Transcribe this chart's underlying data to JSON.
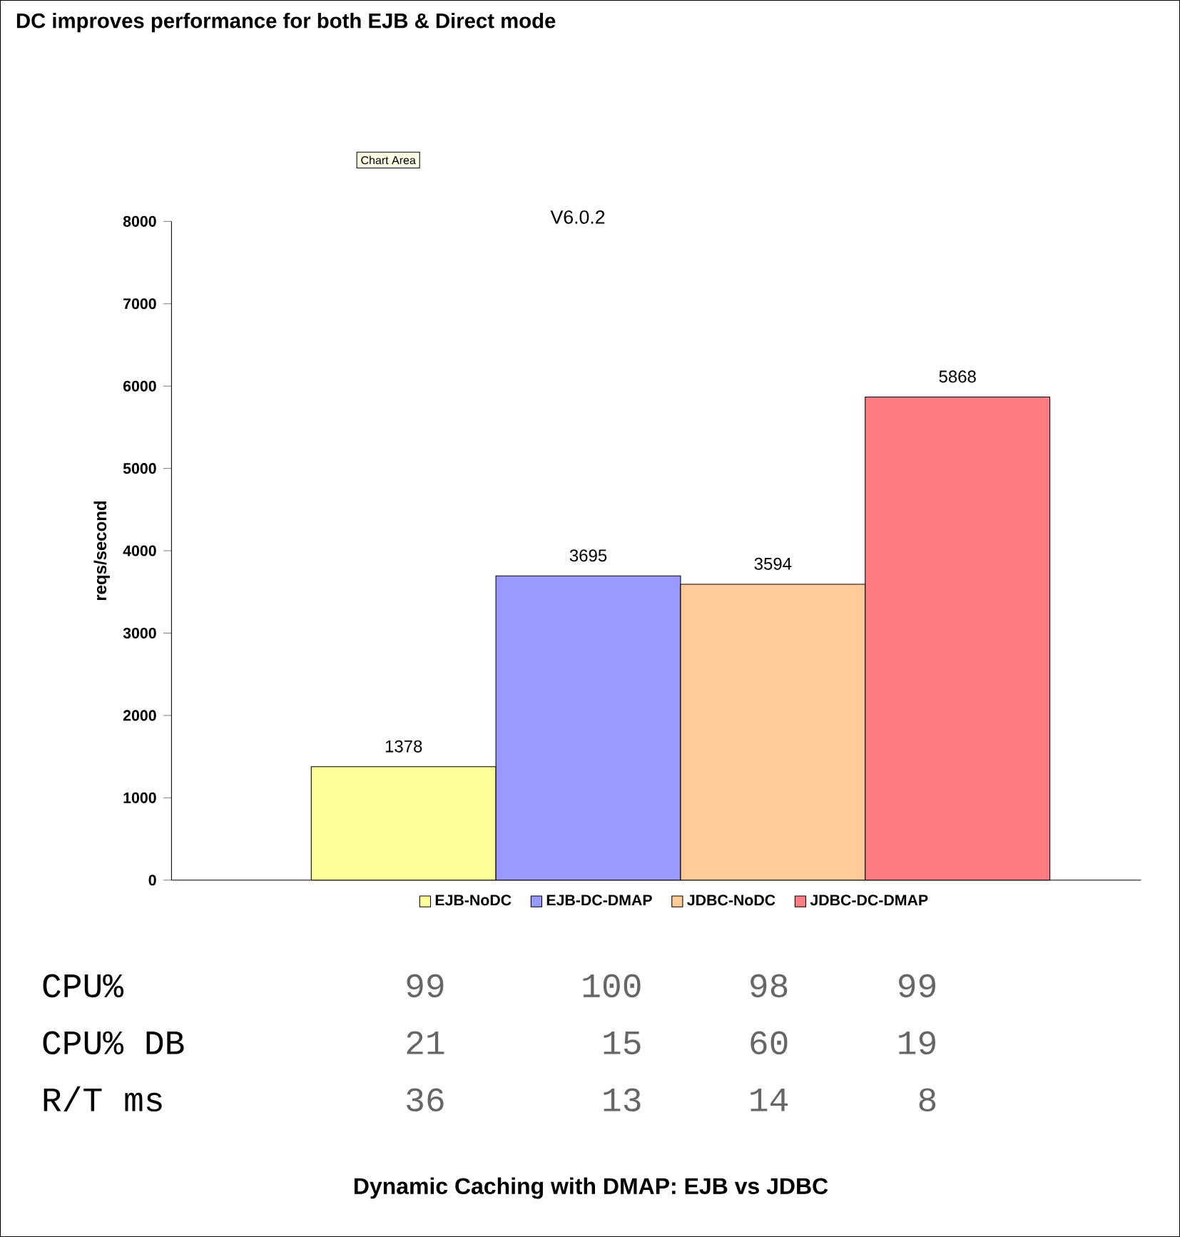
{
  "chart_data": {
    "type": "bar",
    "title": "DC improves performance for both EJB & Direct mode",
    "subtitle": "V6.0.2",
    "ylabel": "reqs/second",
    "categories": [
      null
    ],
    "series": [
      {
        "name": "EJB-NoDC",
        "color": "#ffff99",
        "values": [
          1378
        ]
      },
      {
        "name": "EJB-DC-DMAP",
        "color": "#9999ff",
        "values": [
          3695
        ]
      },
      {
        "name": "JDBC-NoDC",
        "color": "#ffcc99",
        "values": [
          3594
        ]
      },
      {
        "name": "JDBC-DC-DMAP",
        "color": "#ff7c80",
        "values": [
          5868
        ]
      }
    ],
    "ylim": [
      0,
      8000
    ],
    "yticks": [
      0,
      1000,
      2000,
      3000,
      4000,
      5000,
      6000,
      7000,
      8000
    ],
    "data_labels": true,
    "legend": "bottom",
    "grid": false,
    "annotations": [
      "Chart Area",
      "CPU%",
      "99",
      "100",
      "98",
      "99",
      "CPU%  DB",
      "21",
      "15",
      "60",
      "19",
      "R/T ms",
      "36",
      "13",
      "14",
      "8",
      "Dynamic Caching with DMAP: EJB vs JDBC"
    ]
  }
}
